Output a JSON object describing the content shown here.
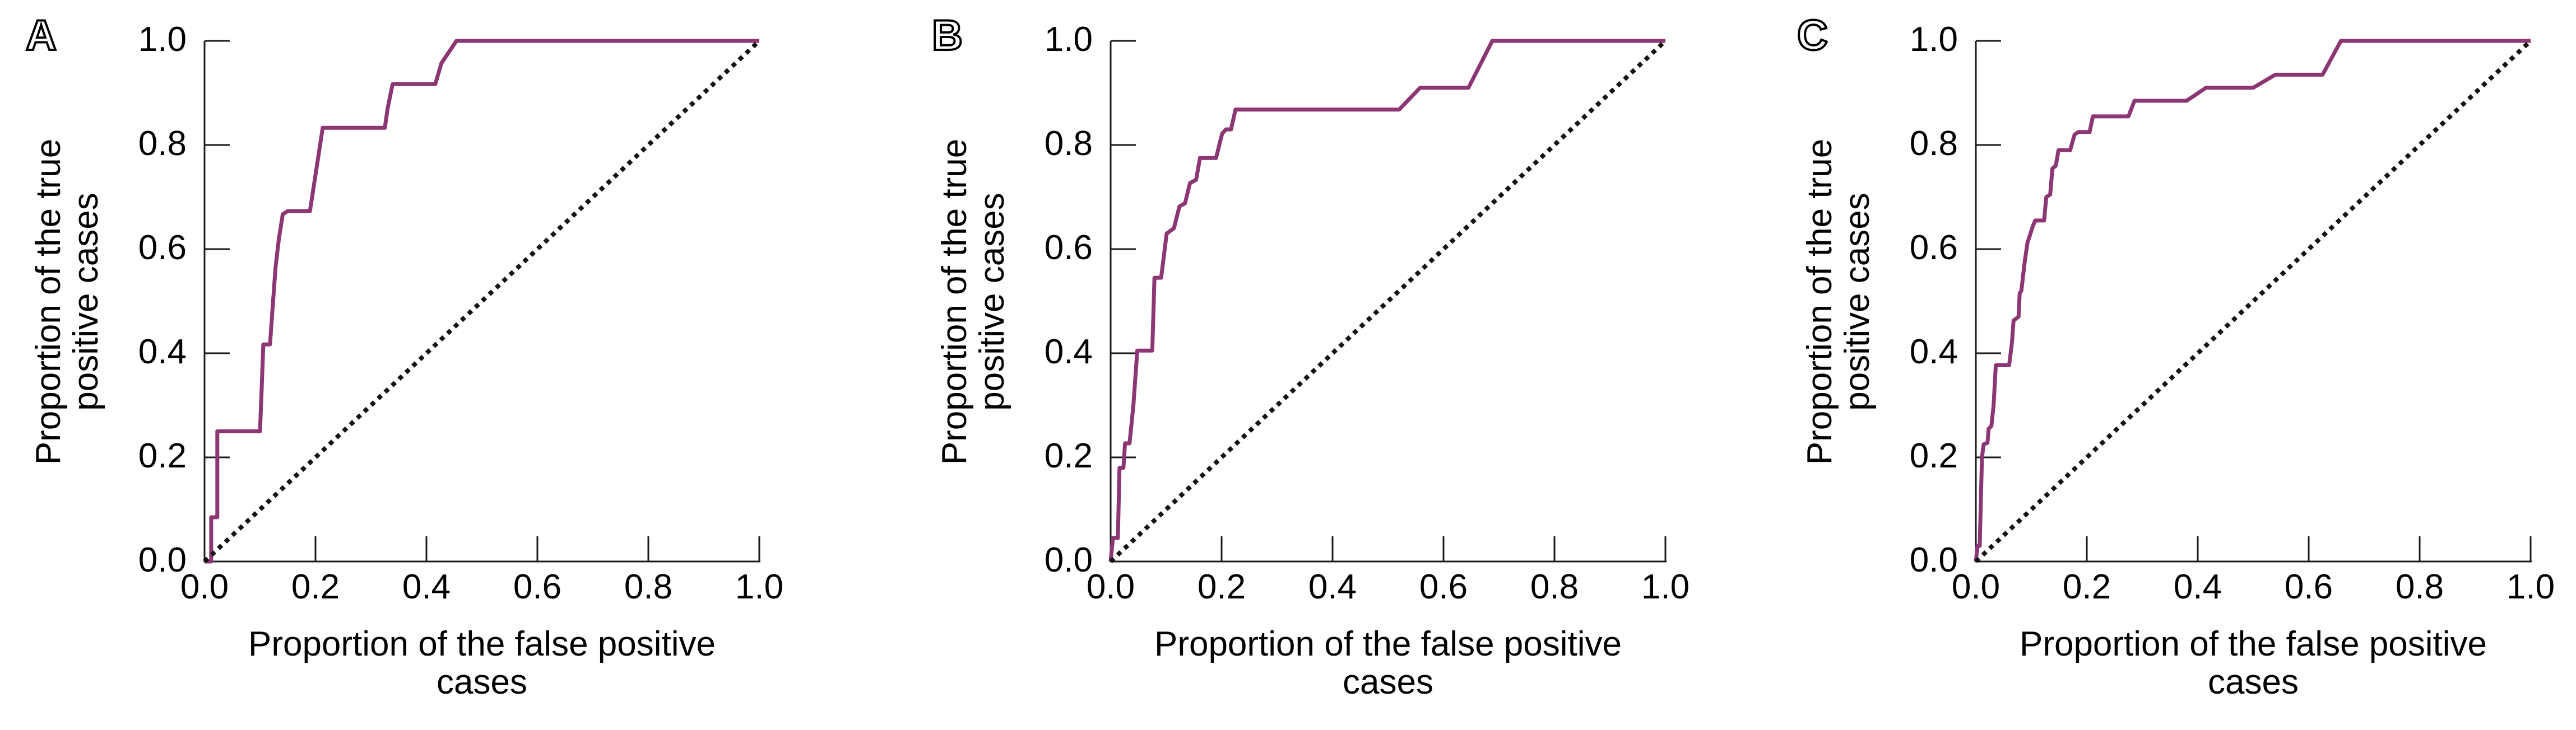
{
  "figure": {
    "description": "Three ROC curve panels",
    "curve_color": "#8c3673",
    "diagonal_color": "#141414"
  },
  "axes": {
    "x_title": "Proportion of the false positive cases",
    "x_title_lines": [
      "Proportion of the false positive",
      "cases"
    ],
    "y_title": "Proportion of the true positive cases",
    "y_title_lines": [
      "Proportion of the true",
      "positive cases"
    ],
    "tick_labels": [
      "0.0",
      "0.2",
      "0.4",
      "0.6",
      "0.8",
      "1.0"
    ]
  },
  "chart_data": [
    {
      "panel_label": "A",
      "type": "line",
      "xlabel": "Proportion of the false positive cases",
      "ylabel": "Proportion of the true positive cases",
      "xlim": [
        0,
        1
      ],
      "ylim": [
        0,
        1
      ],
      "grid": false,
      "x_ticks": [
        0,
        0.2,
        0.4,
        0.6,
        0.8,
        1
      ],
      "y_ticks": [
        0,
        0.2,
        0.4,
        0.6,
        0.8,
        1
      ],
      "x_tick_labels": [
        "0.0",
        "0.2",
        "0.4",
        "0.6",
        "0.8",
        "1.0"
      ],
      "y_tick_labels": [
        "0.0",
        "0.2",
        "0.4",
        "0.6",
        "0.8",
        "1.0"
      ],
      "series": [
        {
          "name": "ROC curve",
          "style": "solid",
          "color": "#8c3673",
          "points": [
            [
              0,
              0
            ],
            [
              0.012,
              0
            ],
            [
              0.012,
              0.085
            ],
            [
              0.023,
              0.085
            ],
            [
              0.023,
              0.25
            ],
            [
              0.1,
              0.25
            ],
            [
              0.103,
              0.333
            ],
            [
              0.106,
              0.417
            ],
            [
              0.118,
              0.417
            ],
            [
              0.128,
              0.565
            ],
            [
              0.134,
              0.62
            ],
            [
              0.141,
              0.667
            ],
            [
              0.15,
              0.673
            ],
            [
              0.19,
              0.673
            ],
            [
              0.213,
              0.833
            ],
            [
              0.325,
              0.833
            ],
            [
              0.33,
              0.87
            ],
            [
              0.339,
              0.917
            ],
            [
              0.416,
              0.917
            ],
            [
              0.427,
              0.957
            ],
            [
              0.454,
              1
            ],
            [
              1,
              1
            ]
          ]
        },
        {
          "name": "Chance diagonal",
          "style": "dotted",
          "color": "#141414",
          "points": [
            [
              0,
              0
            ],
            [
              1,
              1
            ]
          ]
        }
      ]
    },
    {
      "panel_label": "B",
      "type": "line",
      "xlabel": "Proportion of the false positive cases",
      "ylabel": "Proportion of the true positive cases",
      "xlim": [
        0,
        1
      ],
      "ylim": [
        0,
        1
      ],
      "grid": false,
      "x_ticks": [
        0,
        0.2,
        0.4,
        0.6,
        0.8,
        1
      ],
      "y_ticks": [
        0,
        0.2,
        0.4,
        0.6,
        0.8,
        1
      ],
      "x_tick_labels": [
        "0.0",
        "0.2",
        "0.4",
        "0.6",
        "0.8",
        "1.0"
      ],
      "y_tick_labels": [
        "0.0",
        "0.2",
        "0.4",
        "0.6",
        "0.8",
        "1.0"
      ],
      "series": [
        {
          "name": "ROC curve",
          "style": "solid",
          "color": "#8c3673",
          "points": [
            [
              0,
              0
            ],
            [
              0.004,
              0.045
            ],
            [
              0.013,
              0.045
            ],
            [
              0.016,
              0.18
            ],
            [
              0.023,
              0.18
            ],
            [
              0.026,
              0.227
            ],
            [
              0.034,
              0.227
            ],
            [
              0.041,
              0.3
            ],
            [
              0.048,
              0.405
            ],
            [
              0.075,
              0.405
            ],
            [
              0.079,
              0.545
            ],
            [
              0.091,
              0.545
            ],
            [
              0.101,
              0.63
            ],
            [
              0.114,
              0.64
            ],
            [
              0.124,
              0.682
            ],
            [
              0.134,
              0.688
            ],
            [
              0.143,
              0.727
            ],
            [
              0.154,
              0.733
            ],
            [
              0.161,
              0.775
            ],
            [
              0.19,
              0.775
            ],
            [
              0.201,
              0.822
            ],
            [
              0.208,
              0.83
            ],
            [
              0.217,
              0.83
            ],
            [
              0.225,
              0.868
            ],
            [
              0.52,
              0.868
            ],
            [
              0.558,
              0.91
            ],
            [
              0.645,
              0.91
            ],
            [
              0.688,
              1
            ],
            [
              1,
              1
            ]
          ]
        },
        {
          "name": "Chance diagonal",
          "style": "dotted",
          "color": "#141414",
          "points": [
            [
              0,
              0
            ],
            [
              1,
              1
            ]
          ]
        }
      ]
    },
    {
      "panel_label": "C",
      "type": "line",
      "xlabel": "Proportion of the false positive cases",
      "ylabel": "Proportion of the true positive cases",
      "xlim": [
        0,
        1
      ],
      "ylim": [
        0,
        1
      ],
      "grid": false,
      "x_ticks": [
        0,
        0.2,
        0.4,
        0.6,
        0.8,
        1
      ],
      "y_ticks": [
        0,
        0.2,
        0.4,
        0.6,
        0.8,
        1
      ],
      "x_tick_labels": [
        "0.0",
        "0.2",
        "0.4",
        "0.6",
        "0.8",
        "1.0"
      ],
      "y_tick_labels": [
        "0.0",
        "0.2",
        "0.4",
        "0.6",
        "0.8",
        "1.0"
      ],
      "series": [
        {
          "name": "ROC curve",
          "style": "solid",
          "color": "#8c3673",
          "points": [
            [
              0,
              0
            ],
            [
              0.003,
              0.03
            ],
            [
              0.007,
              0.03
            ],
            [
              0.011,
              0.2
            ],
            [
              0.014,
              0.225
            ],
            [
              0.021,
              0.228
            ],
            [
              0.023,
              0.255
            ],
            [
              0.028,
              0.26
            ],
            [
              0.032,
              0.3
            ],
            [
              0.036,
              0.377
            ],
            [
              0.06,
              0.377
            ],
            [
              0.065,
              0.42
            ],
            [
              0.068,
              0.463
            ],
            [
              0.077,
              0.47
            ],
            [
              0.079,
              0.515
            ],
            [
              0.082,
              0.52
            ],
            [
              0.088,
              0.575
            ],
            [
              0.093,
              0.612
            ],
            [
              0.103,
              0.645
            ],
            [
              0.107,
              0.655
            ],
            [
              0.123,
              0.655
            ],
            [
              0.127,
              0.7
            ],
            [
              0.134,
              0.705
            ],
            [
              0.138,
              0.755
            ],
            [
              0.144,
              0.76
            ],
            [
              0.149,
              0.79
            ],
            [
              0.17,
              0.79
            ],
            [
              0.178,
              0.82
            ],
            [
              0.185,
              0.825
            ],
            [
              0.205,
              0.825
            ],
            [
              0.211,
              0.855
            ],
            [
              0.275,
              0.855
            ],
            [
              0.286,
              0.885
            ],
            [
              0.38,
              0.885
            ],
            [
              0.415,
              0.91
            ],
            [
              0.5,
              0.91
            ],
            [
              0.54,
              0.935
            ],
            [
              0.625,
              0.935
            ],
            [
              0.658,
              1
            ],
            [
              1,
              1
            ]
          ]
        },
        {
          "name": "Chance diagonal",
          "style": "dotted",
          "color": "#141414",
          "points": [
            [
              0,
              0
            ],
            [
              1,
              1
            ]
          ]
        }
      ]
    }
  ]
}
